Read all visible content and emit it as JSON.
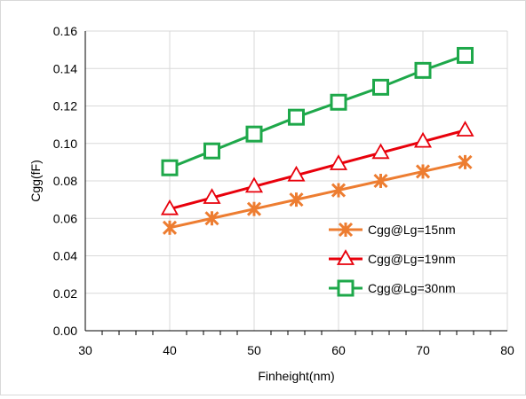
{
  "chart_data": {
    "type": "line",
    "title": "",
    "xlabel": "Finheight(nm)",
    "ylabel": "Cgg(fF)",
    "xlim": [
      30,
      80
    ],
    "ylim": [
      0.0,
      0.16
    ],
    "x_ticks": [
      "30",
      "40",
      "50",
      "60",
      "70",
      "80"
    ],
    "y_ticks": [
      "0.00",
      "0.02",
      "0.04",
      "0.06",
      "0.08",
      "0.10",
      "0.12",
      "0.14",
      "0.16"
    ],
    "grid": true,
    "legend_position": "right",
    "x": [
      40,
      45,
      50,
      55,
      60,
      65,
      70,
      75
    ],
    "series": [
      {
        "name": "Cgg@Lg=15nm",
        "color": "#ed7d31",
        "marker": "asterisk",
        "values": [
          0.055,
          0.06,
          0.065,
          0.07,
          0.075,
          0.08,
          0.085,
          0.09
        ]
      },
      {
        "name": "Cgg@Lg=19nm",
        "color": "#e8000b",
        "marker": "triangle",
        "values": [
          0.065,
          0.071,
          0.077,
          0.083,
          0.089,
          0.095,
          0.101,
          0.107
        ]
      },
      {
        "name": "Cgg@Lg=30nm",
        "color": "#1ea84a",
        "marker": "square",
        "values": [
          0.087,
          0.096,
          0.105,
          0.114,
          0.122,
          0.13,
          0.139,
          0.147
        ]
      }
    ]
  }
}
